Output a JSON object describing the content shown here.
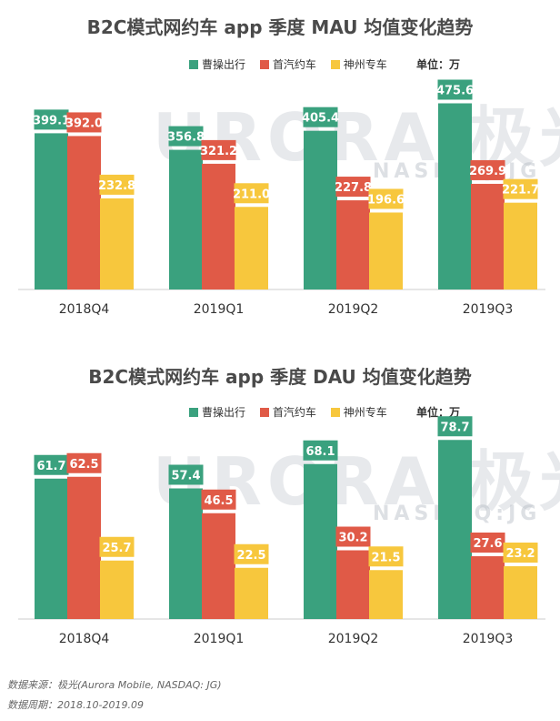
{
  "chart_data": [
    {
      "type": "bar",
      "title": "B2C模式网约车 app 季度 MAU 均值变化趋势",
      "unit_label": "单位：万",
      "categories": [
        "2018Q4",
        "2019Q1",
        "2019Q2",
        "2019Q3"
      ],
      "series": [
        {
          "name": "曹操出行",
          "color": "#3aa17e",
          "values": [
            399.1,
            356.8,
            405.4,
            475.6
          ]
        },
        {
          "name": "首汽约车",
          "color": "#e05a47",
          "values": [
            392.0,
            321.2,
            227.8,
            269.9
          ]
        },
        {
          "name": "神州专车",
          "color": "#f7c73d",
          "values": [
            232.8,
            211.0,
            196.6,
            221.7
          ]
        }
      ],
      "ylim": [
        0,
        500
      ]
    },
    {
      "type": "bar",
      "title": "B2C模式网约车 app 季度 DAU 均值变化趋势",
      "unit_label": "单位：万",
      "categories": [
        "2018Q4",
        "2019Q1",
        "2019Q2",
        "2019Q3"
      ],
      "series": [
        {
          "name": "曹操出行",
          "color": "#3aa17e",
          "values": [
            61.7,
            57.4,
            68.1,
            78.7
          ]
        },
        {
          "name": "首汽约车",
          "color": "#e05a47",
          "values": [
            62.5,
            46.5,
            30.2,
            27.6
          ]
        },
        {
          "name": "神州专车",
          "color": "#f7c73d",
          "values": [
            25.7,
            22.5,
            21.5,
            23.2
          ]
        }
      ],
      "ylim": [
        0,
        82
      ]
    }
  ],
  "watermark": {
    "main": "URORA 极光",
    "sub": "NASDAQ:JG"
  },
  "footer": {
    "source": "数据来源：极光(Aurora  Mobile, NASDAQ: JG)",
    "period": "数据周期：2018.10-2019.09"
  }
}
